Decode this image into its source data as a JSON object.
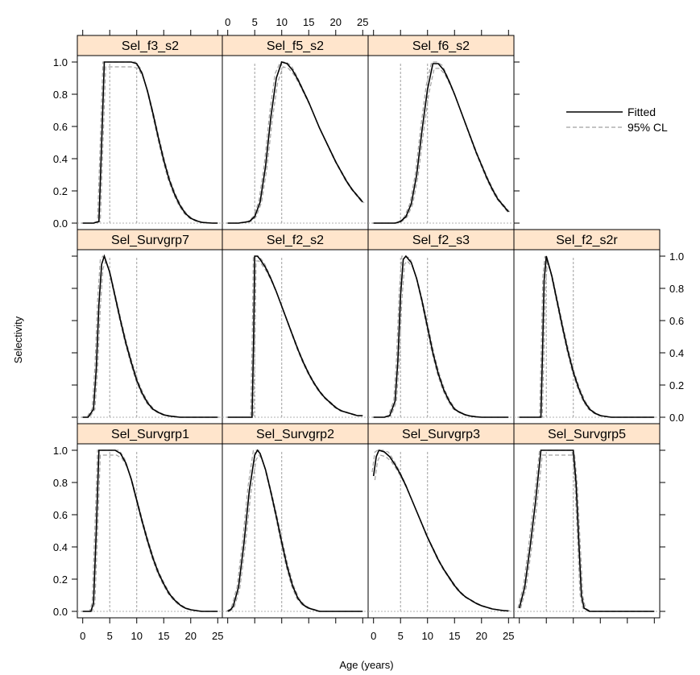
{
  "chart_data": {
    "type": "line",
    "xlabel": "Age (years)",
    "ylabel": "Selectivity",
    "xlim": [
      -1,
      26
    ],
    "ylim": [
      -0.04,
      1.04
    ],
    "x_ticks": [
      0,
      5,
      10,
      15,
      20,
      25
    ],
    "y_ticks": [
      0.0,
      0.2,
      0.4,
      0.6,
      0.8,
      1.0
    ],
    "y_tick_labels": [
      "0.0",
      "0.2",
      "0.4",
      "0.6",
      "0.8",
      "1.0"
    ],
    "legend": {
      "position": "top-right",
      "entries": [
        {
          "label": "Fitted",
          "style": "solid",
          "color": "#000000"
        },
        {
          "label": "95% CL",
          "style": "dashed",
          "color": "#a0a0a0"
        }
      ]
    },
    "colors": {
      "strip": "#ffe5cc",
      "fitted": "#000000",
      "ci": "#a0a0a0",
      "guide": "#a0a0a0",
      "zero": "#b0b0b0"
    },
    "panels": [
      {
        "name": "Sel_f3_s2",
        "row": 0,
        "col": 0,
        "guides": [
          5,
          10
        ],
        "x": [
          0,
          2,
          3,
          3.5,
          4,
          5,
          6,
          7,
          8,
          9,
          10,
          11,
          12,
          13,
          14,
          15,
          16,
          17,
          18,
          19,
          20,
          21,
          22,
          23,
          24,
          25
        ],
        "y": [
          0,
          0,
          0.01,
          0.5,
          1.0,
          1.0,
          1.0,
          1.0,
          1.0,
          1.0,
          0.99,
          0.93,
          0.82,
          0.68,
          0.53,
          0.39,
          0.27,
          0.18,
          0.11,
          0.06,
          0.03,
          0.015,
          0.005,
          0.002,
          0,
          0
        ]
      },
      {
        "name": "Sel_f5_s2",
        "row": 0,
        "col": 1,
        "guides": [
          5,
          10
        ],
        "x": [
          0,
          2,
          4,
          5,
          6,
          7,
          8,
          9,
          10,
          11,
          12,
          13,
          14,
          15,
          16,
          17,
          18,
          19,
          20,
          21,
          22,
          23,
          24,
          25
        ],
        "y": [
          0,
          0,
          0.01,
          0.04,
          0.13,
          0.35,
          0.66,
          0.9,
          1.0,
          0.99,
          0.95,
          0.89,
          0.82,
          0.75,
          0.67,
          0.59,
          0.52,
          0.45,
          0.38,
          0.32,
          0.26,
          0.21,
          0.17,
          0.13
        ]
      },
      {
        "name": "Sel_f6_s2",
        "row": 0,
        "col": 2,
        "guides": [
          5,
          10
        ],
        "x": [
          0,
          2,
          4,
          5,
          6,
          7,
          8,
          9,
          10,
          11,
          12,
          13,
          14,
          15,
          16,
          17,
          18,
          19,
          20,
          21,
          22,
          23,
          24,
          25
        ],
        "y": [
          0,
          0,
          0,
          0.01,
          0.04,
          0.12,
          0.3,
          0.58,
          0.83,
          0.99,
          0.99,
          0.95,
          0.88,
          0.8,
          0.71,
          0.62,
          0.53,
          0.44,
          0.36,
          0.28,
          0.21,
          0.15,
          0.11,
          0.07
        ]
      },
      {
        "name": "Sel_Survgrp7",
        "row": 1,
        "col": 0,
        "guides": [
          5,
          10
        ],
        "x": [
          0,
          1,
          2,
          2.5,
          3,
          3.5,
          4,
          5,
          6,
          7,
          8,
          9,
          10,
          11,
          12,
          13,
          14,
          15,
          16,
          17,
          18,
          20,
          22,
          25
        ],
        "y": [
          0,
          0,
          0.05,
          0.3,
          0.7,
          0.95,
          1.0,
          0.9,
          0.75,
          0.6,
          0.46,
          0.34,
          0.23,
          0.15,
          0.09,
          0.05,
          0.03,
          0.015,
          0.008,
          0.004,
          0,
          0,
          0,
          0
        ]
      },
      {
        "name": "Sel_f2_s2",
        "row": 1,
        "col": 1,
        "guides": [
          5,
          10
        ],
        "x": [
          0,
          3,
          4.5,
          4.8,
          5,
          5.5,
          6,
          7,
          8,
          9,
          10,
          11,
          12,
          13,
          14,
          15,
          16,
          17,
          18,
          19,
          20,
          21,
          22,
          23,
          24,
          25
        ],
        "y": [
          0,
          0,
          0,
          0.5,
          1.0,
          1.0,
          0.98,
          0.93,
          0.86,
          0.78,
          0.69,
          0.6,
          0.51,
          0.42,
          0.34,
          0.27,
          0.21,
          0.16,
          0.12,
          0.09,
          0.06,
          0.04,
          0.03,
          0.02,
          0.01,
          0.01
        ]
      },
      {
        "name": "Sel_f2_s3",
        "row": 1,
        "col": 2,
        "guides": [
          5,
          10
        ],
        "x": [
          0,
          2,
          3,
          4,
          4.5,
          5,
          5.5,
          6,
          7,
          8,
          9,
          10,
          11,
          12,
          13,
          14,
          15,
          16,
          17,
          18,
          19,
          20,
          22,
          25
        ],
        "y": [
          0,
          0,
          0.01,
          0.1,
          0.35,
          0.75,
          0.98,
          1.0,
          0.96,
          0.86,
          0.72,
          0.56,
          0.4,
          0.27,
          0.17,
          0.1,
          0.05,
          0.03,
          0.015,
          0.007,
          0.003,
          0,
          0,
          0
        ]
      },
      {
        "name": "Sel_f2_s2r",
        "row": 1,
        "col": 3,
        "guides": [
          5,
          10
        ],
        "x": [
          0,
          3,
          4,
          4.3,
          4.6,
          5,
          6,
          7,
          8,
          9,
          10,
          11,
          12,
          13,
          14,
          15,
          16,
          17,
          18,
          20,
          22,
          25
        ],
        "y": [
          0,
          0,
          0,
          0.4,
          0.85,
          1.0,
          0.88,
          0.72,
          0.56,
          0.41,
          0.28,
          0.18,
          0.1,
          0.05,
          0.025,
          0.01,
          0.005,
          0,
          0,
          0,
          0,
          0
        ]
      },
      {
        "name": "Sel_Survgrp1",
        "row": 2,
        "col": 0,
        "guides": [
          5,
          10
        ],
        "x": [
          0,
          1.5,
          2,
          2.5,
          3,
          4,
          5,
          6,
          7,
          8,
          9,
          10,
          11,
          12,
          13,
          14,
          15,
          16,
          17,
          18,
          19,
          20,
          21,
          22,
          25
        ],
        "y": [
          0,
          0,
          0.05,
          0.5,
          1.0,
          1.0,
          1.0,
          1.0,
          0.98,
          0.92,
          0.82,
          0.69,
          0.56,
          0.44,
          0.33,
          0.24,
          0.17,
          0.11,
          0.07,
          0.04,
          0.02,
          0.01,
          0.005,
          0,
          0
        ]
      },
      {
        "name": "Sel_Survgrp2",
        "row": 2,
        "col": 1,
        "guides": [
          5,
          10
        ],
        "x": [
          0,
          0.5,
          1,
          2,
          3,
          4,
          5,
          5.5,
          6,
          7,
          8,
          9,
          10,
          11,
          12,
          13,
          14,
          15,
          16,
          17,
          18,
          20,
          22,
          25
        ],
        "y": [
          0,
          0.01,
          0.03,
          0.15,
          0.42,
          0.75,
          0.97,
          1.0,
          0.98,
          0.88,
          0.74,
          0.59,
          0.43,
          0.28,
          0.16,
          0.08,
          0.04,
          0.02,
          0.01,
          0,
          0,
          0,
          0,
          0
        ]
      },
      {
        "name": "Sel_Survgrp3",
        "row": 2,
        "col": 2,
        "guides": [
          5,
          10
        ],
        "x": [
          0,
          0.5,
          1,
          2,
          3,
          4,
          5,
          6,
          7,
          8,
          9,
          10,
          11,
          12,
          13,
          14,
          15,
          16,
          17,
          18,
          19,
          20,
          21,
          22,
          23,
          24,
          25
        ],
        "y": [
          0.84,
          0.96,
          1.0,
          0.99,
          0.96,
          0.91,
          0.85,
          0.78,
          0.7,
          0.62,
          0.54,
          0.46,
          0.39,
          0.32,
          0.26,
          0.21,
          0.16,
          0.12,
          0.09,
          0.07,
          0.05,
          0.035,
          0.025,
          0.015,
          0.01,
          0.005,
          0.003
        ]
      },
      {
        "name": "Sel_Survgrp5",
        "row": 2,
        "col": 3,
        "guides": [
          5,
          10
        ],
        "x": [
          0,
          1,
          2,
          3,
          4,
          5,
          6,
          7,
          8,
          9,
          10,
          10.5,
          11,
          11.5,
          12,
          13,
          14,
          16,
          18,
          20,
          22,
          25
        ],
        "y": [
          0.02,
          0.15,
          0.4,
          0.68,
          1.0,
          1.0,
          1.0,
          1.0,
          1.0,
          1.0,
          1.0,
          0.8,
          0.45,
          0.1,
          0.02,
          0,
          0,
          0,
          0,
          0,
          0,
          0
        ]
      }
    ]
  }
}
